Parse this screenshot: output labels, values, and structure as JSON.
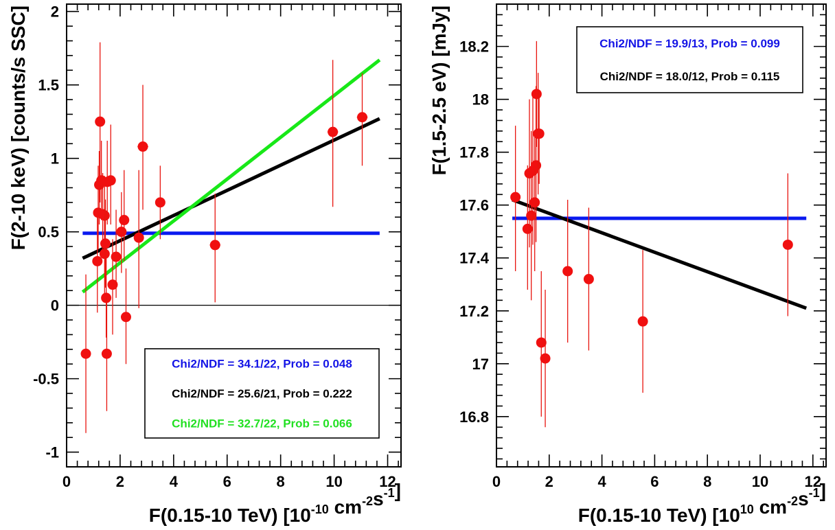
{
  "chart_data": [
    {
      "type": "scatter",
      "xlabel_main": "F(0.15-10 TeV) [10",
      "xlabel_sup1": "-10",
      "xlabel_mid": " cm",
      "xlabel_sup2": "-2",
      "xlabel_mid2": "s",
      "xlabel_sup3": "-1",
      "xlabel_end": "]",
      "ylabel": "F(2-10 keV) [counts/s SSC]",
      "xlim": [
        0,
        12.5
      ],
      "ylim": [
        -1.1,
        2.05
      ],
      "x_ticks": [
        0,
        2,
        4,
        6,
        8,
        10,
        12
      ],
      "x_tick_labels": [
        "0",
        "2",
        "4",
        "6",
        "8",
        "10",
        "12"
      ],
      "y_ticks": [
        -1,
        -0.5,
        0,
        0.5,
        1,
        1.5,
        2
      ],
      "y_tick_labels": [
        "-1",
        "-0.5",
        "0",
        "0.5",
        "1",
        "1.5",
        "2"
      ],
      "zero_line": true,
      "points": [
        {
          "x": 0.72,
          "y": -0.33,
          "ylo": -0.87,
          "yhi": 0.21,
          "xerr": 0.05
        },
        {
          "x": 1.15,
          "y": 0.3,
          "ylo": -0.05,
          "yhi": 0.62,
          "xerr": 0.05
        },
        {
          "x": 1.18,
          "y": 0.63,
          "ylo": 0.38,
          "yhi": 0.95,
          "xerr": 0.05
        },
        {
          "x": 1.22,
          "y": 0.82,
          "ylo": 0.55,
          "yhi": 1.05,
          "xerr": 0.05
        },
        {
          "x": 1.25,
          "y": 1.25,
          "ylo": 0.7,
          "yhi": 1.79,
          "xerr": 0.05
        },
        {
          "x": 1.3,
          "y": 0.85,
          "ylo": 0.58,
          "yhi": 1.12,
          "xerr": 0.05
        },
        {
          "x": 1.35,
          "y": 0.62,
          "ylo": 0.35,
          "yhi": 0.9,
          "xerr": 0.05
        },
        {
          "x": 1.42,
          "y": 0.61,
          "ylo": 0.34,
          "yhi": 0.88,
          "xerr": 0.05
        },
        {
          "x": 1.42,
          "y": 0.35,
          "ylo": 0.05,
          "yhi": 0.62,
          "xerr": 0.05
        },
        {
          "x": 1.45,
          "y": 0.42,
          "ylo": 0.12,
          "yhi": 0.72,
          "xerr": 0.05
        },
        {
          "x": 1.48,
          "y": 0.05,
          "ylo": -0.22,
          "yhi": 0.32,
          "xerr": 0.05
        },
        {
          "x": 1.52,
          "y": 0.84,
          "ylo": 0.55,
          "yhi": 1.12,
          "xerr": 0.05
        },
        {
          "x": 1.5,
          "y": -0.33,
          "ylo": -0.72,
          "yhi": 0.05,
          "xerr": 0.1
        },
        {
          "x": 1.65,
          "y": 0.85,
          "ylo": 0.55,
          "yhi": 1.23,
          "xerr": 0.1
        },
        {
          "x": 1.72,
          "y": 0.14,
          "ylo": -0.2,
          "yhi": 0.45,
          "xerr": 0.1
        },
        {
          "x": 1.85,
          "y": 0.33,
          "ylo": 0.05,
          "yhi": 0.65,
          "xerr": 0.15
        },
        {
          "x": 2.05,
          "y": 0.5,
          "ylo": 0.22,
          "yhi": 0.77,
          "xerr": 0.15
        },
        {
          "x": 2.15,
          "y": 0.58,
          "ylo": 0.3,
          "yhi": 0.92,
          "xerr": 0.15
        },
        {
          "x": 2.22,
          "y": -0.08,
          "ylo": -0.4,
          "yhi": 0.25,
          "xerr": 0.15
        },
        {
          "x": 2.7,
          "y": 0.46,
          "ylo": -0.02,
          "yhi": 0.92,
          "xerr": 0.15
        },
        {
          "x": 2.85,
          "y": 1.08,
          "ylo": 0.65,
          "yhi": 1.5,
          "xerr": 0.2
        },
        {
          "x": 3.5,
          "y": 0.7,
          "ylo": 0.45,
          "yhi": 0.95,
          "xerr": 0.15
        },
        {
          "x": 5.55,
          "y": 0.41,
          "ylo": 0.02,
          "yhi": 0.76,
          "xerr": 0.2
        },
        {
          "x": 9.95,
          "y": 1.18,
          "ylo": 0.67,
          "yhi": 1.67,
          "xerr": 0.2
        },
        {
          "x": 11.05,
          "y": 1.28,
          "ylo": 0.95,
          "yhi": 1.58,
          "xerr": 0.2
        }
      ],
      "fits": [
        {
          "color": "#0a1aef",
          "x": [
            0.6,
            11.7
          ],
          "y": [
            0.49,
            0.49
          ]
        },
        {
          "color": "#000000",
          "x": [
            0.6,
            11.7
          ],
          "y": [
            0.32,
            1.27
          ]
        },
        {
          "color": "#18e818",
          "x": [
            0.6,
            11.7
          ],
          "y": [
            0.09,
            1.67
          ]
        }
      ],
      "legend": [
        {
          "text": "Chi2/NDF = 34.1/22, Prob = 0.048",
          "color": "#1414e6"
        },
        {
          "text": "Chi2/NDF = 25.6/21, Prob = 0.222",
          "color": "#000000"
        },
        {
          "text": "Chi2/NDF = 32.7/22, Prob = 0.066",
          "color": "#22e022"
        }
      ],
      "legend_position": "bottom-right"
    },
    {
      "type": "scatter",
      "xlabel_main": "F(0.15-10 TeV) [10",
      "xlabel_sup1": "10",
      "xlabel_mid": " cm",
      "xlabel_sup2": "-2",
      "xlabel_mid2": "s",
      "xlabel_sup3": "-1",
      "xlabel_end": "]",
      "ylabel": "F(1.5-2.5 eV) [mJy]",
      "xlim": [
        0,
        12.5
      ],
      "ylim": [
        16.61,
        18.36
      ],
      "x_ticks": [
        0,
        2,
        4,
        6,
        8,
        10,
        12
      ],
      "x_tick_labels": [
        "0",
        "2",
        "4",
        "6",
        "8",
        "10",
        "12"
      ],
      "y_ticks": [
        16.8,
        17,
        17.2,
        17.4,
        17.6,
        17.8,
        18,
        18.2
      ],
      "y_tick_labels": [
        "16.8",
        "17",
        "17.2",
        "17.4",
        "17.6",
        "17.8",
        "18",
        "18.2"
      ],
      "zero_line": false,
      "points": [
        {
          "x": 0.72,
          "y": 17.63,
          "ylo": 17.35,
          "yhi": 17.9,
          "xerr": 0.08
        },
        {
          "x": 1.18,
          "y": 17.51,
          "ylo": 17.28,
          "yhi": 17.75,
          "xerr": 0.05
        },
        {
          "x": 1.25,
          "y": 17.72,
          "ylo": 17.44,
          "yhi": 18.0,
          "xerr": 0.05
        },
        {
          "x": 1.32,
          "y": 17.56,
          "ylo": 17.24,
          "yhi": 17.88,
          "xerr": 0.05
        },
        {
          "x": 1.38,
          "y": 17.73,
          "ylo": 17.45,
          "yhi": 18.01,
          "xerr": 0.05
        },
        {
          "x": 1.45,
          "y": 17.61,
          "ylo": 17.35,
          "yhi": 17.87,
          "xerr": 0.05
        },
        {
          "x": 1.5,
          "y": 17.75,
          "ylo": 17.46,
          "yhi": 18.05,
          "xerr": 0.05
        },
        {
          "x": 1.52,
          "y": 18.02,
          "ylo": 17.82,
          "yhi": 18.22,
          "xerr": 0.05
        },
        {
          "x": 1.58,
          "y": 17.87,
          "ylo": 17.64,
          "yhi": 18.1,
          "xerr": 0.05
        },
        {
          "x": 1.62,
          "y": 17.87,
          "ylo": 17.68,
          "yhi": 18.03,
          "xerr": 0.05
        },
        {
          "x": 1.7,
          "y": 17.08,
          "ylo": 16.8,
          "yhi": 17.35,
          "xerr": 0.08
        },
        {
          "x": 1.85,
          "y": 17.02,
          "ylo": 16.76,
          "yhi": 17.28,
          "xerr": 0.12
        },
        {
          "x": 2.7,
          "y": 17.35,
          "ylo": 17.08,
          "yhi": 17.62,
          "xerr": 0.12
        },
        {
          "x": 3.5,
          "y": 17.32,
          "ylo": 17.05,
          "yhi": 17.59,
          "xerr": 0.18
        },
        {
          "x": 5.55,
          "y": 17.16,
          "ylo": 16.89,
          "yhi": 17.43,
          "xerr": 0.18
        },
        {
          "x": 11.05,
          "y": 17.45,
          "ylo": 17.18,
          "yhi": 17.72,
          "xerr": 0.15
        }
      ],
      "fits": [
        {
          "color": "#0a1aef",
          "x": [
            0.6,
            11.75
          ],
          "y": [
            17.55,
            17.55
          ]
        },
        {
          "color": "#000000",
          "x": [
            0.6,
            11.75
          ],
          "y": [
            17.62,
            17.21
          ]
        }
      ],
      "legend": [
        {
          "text": "Chi2/NDF = 19.9/13, Prob = 0.099",
          "color": "#1414e6"
        },
        {
          "text": "Chi2/NDF = 18.0/12, Prob = 0.115",
          "color": "#000000"
        }
      ],
      "legend_position": "top-right"
    }
  ]
}
